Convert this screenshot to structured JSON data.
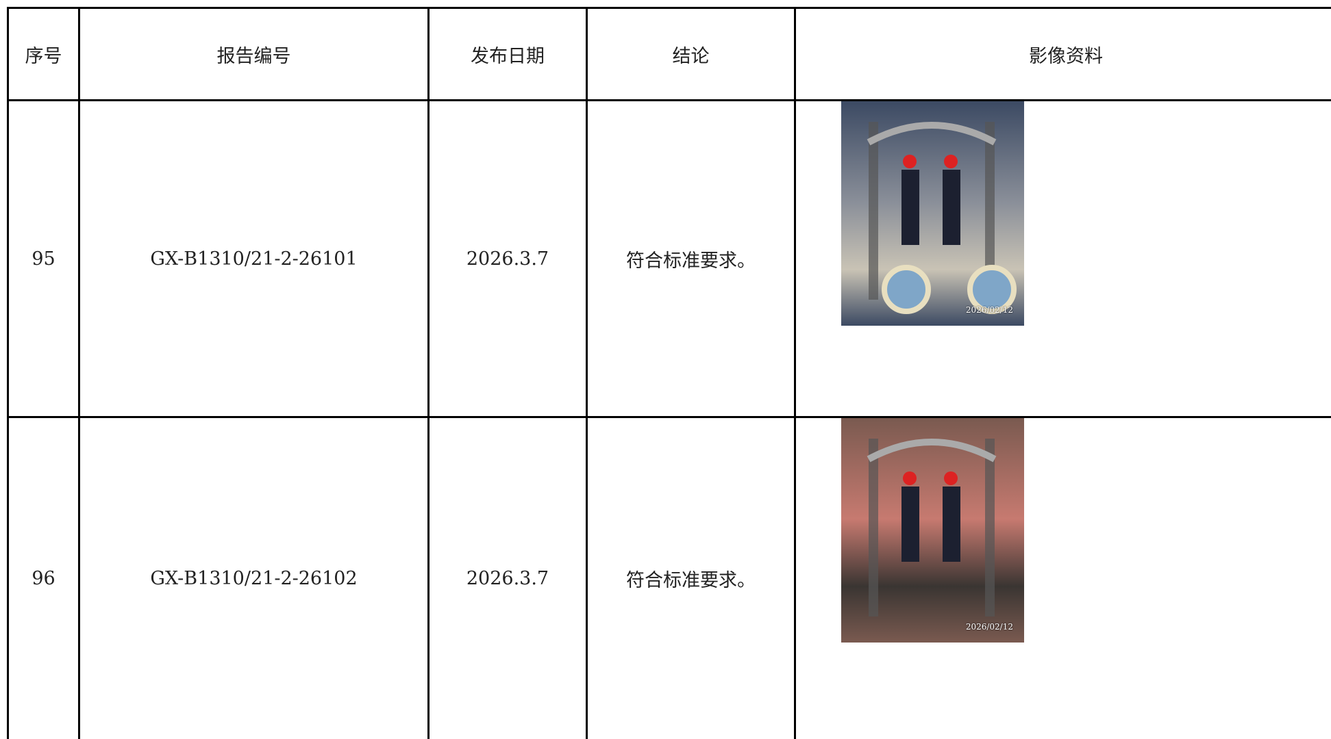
{
  "table": {
    "columns": [
      "序号",
      "报告编号",
      "发布日期",
      "结论",
      "影像资料"
    ],
    "rows": [
      [
        "95",
        "GX-B1310/21-2-26101",
        "2026.3.7",
        "符合标准要求。",
        {
          "photo_stamp": "2026/02/12"
        }
      ],
      [
        "96",
        "GX-B1310/21-2-26102",
        "2026.3.7",
        "符合标准要求。",
        {
          "photo_stamp": "2026/02/12"
        }
      ]
    ]
  }
}
